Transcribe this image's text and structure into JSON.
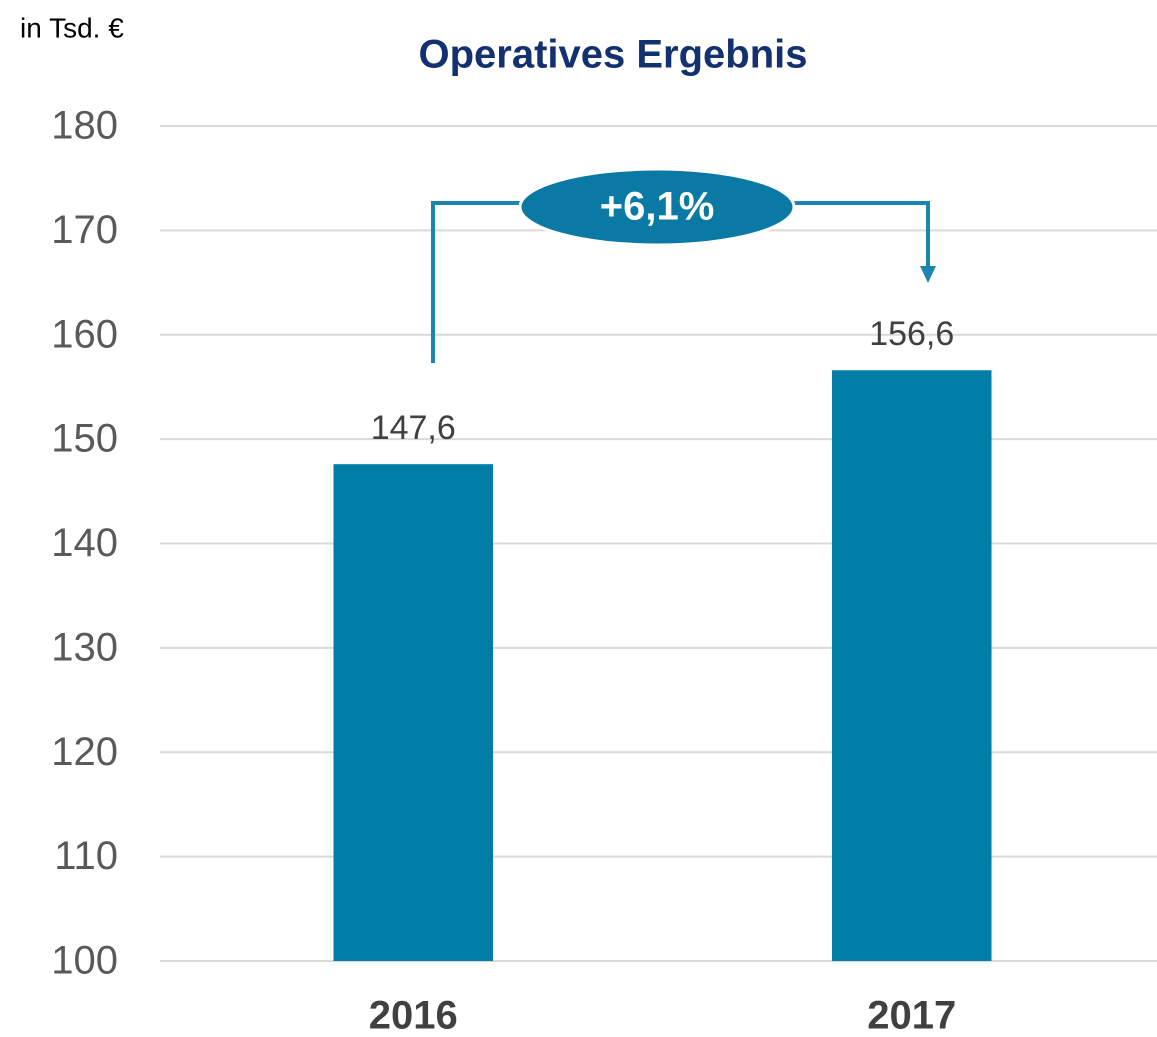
{
  "chart_data": {
    "type": "bar",
    "title": "Operatives Ergebnis",
    "unit_label": "in Tsd. €",
    "categories": [
      "2016",
      "2017"
    ],
    "values": [
      147.6,
      156.6
    ],
    "value_labels": [
      "147,6",
      "156,6"
    ],
    "color": "#007ea7",
    "ylim": [
      100,
      180
    ],
    "yticks": [
      100,
      110,
      120,
      130,
      140,
      150,
      160,
      170,
      180
    ],
    "grid": true,
    "annotation": "+6,1%"
  }
}
